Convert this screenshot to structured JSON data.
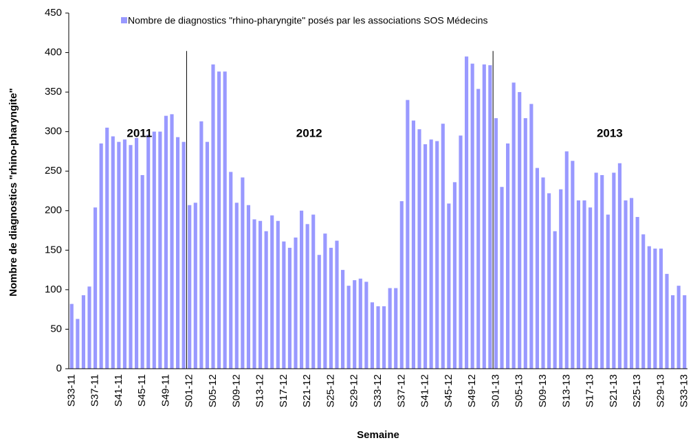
{
  "chart_data": {
    "type": "bar",
    "legend_label": "Nombre de diagnostics \"rhino-pharyngite\" posés par les associations SOS Médecins",
    "y_label": "Nombre de diagnostics \"rhino-pharyngite\"",
    "x_label": "Semaine",
    "annotations": [
      "2011",
      "2012",
      "2013"
    ],
    "color": "#9999ff",
    "ylim": [
      0,
      450
    ],
    "yticks": [
      0,
      50,
      100,
      150,
      200,
      250,
      300,
      350,
      400,
      450
    ],
    "categories": [
      "S33-11",
      null,
      null,
      null,
      "S37-11",
      null,
      null,
      null,
      "S41-11",
      null,
      null,
      null,
      "S45-11",
      null,
      null,
      null,
      "S49-11",
      null,
      null,
      null,
      "S01-12",
      null,
      null,
      null,
      "S05-12",
      null,
      null,
      null,
      "S09-12",
      null,
      null,
      null,
      "S13-12",
      null,
      null,
      null,
      "S17-12",
      null,
      null,
      null,
      "S21-12",
      null,
      null,
      null,
      "S25-12",
      null,
      null,
      null,
      "S29-12",
      null,
      null,
      null,
      "S33-12",
      null,
      null,
      null,
      "S37-12",
      null,
      null,
      null,
      "S41-12",
      null,
      null,
      null,
      "S45-12",
      null,
      null,
      null,
      "S49-12",
      null,
      null,
      null,
      "S01-13",
      null,
      null,
      null,
      "S05-13",
      null,
      null,
      null,
      "S09-13",
      null,
      null,
      null,
      "S13-13",
      null,
      null,
      null,
      "S17-13",
      null,
      null,
      null,
      "S21-13",
      null,
      null,
      null,
      "S25-13",
      null,
      null,
      null,
      "S29-13",
      null,
      null,
      null,
      "S33-13"
    ],
    "values": [
      82,
      63,
      93,
      104,
      204,
      285,
      305,
      294,
      287,
      290,
      283,
      292,
      245,
      296,
      300,
      300,
      320,
      322,
      293,
      287,
      207,
      210,
      313,
      287,
      385,
      376,
      376,
      249,
      210,
      242,
      207,
      189,
      187,
      174,
      194,
      187,
      161,
      153,
      166,
      200,
      183,
      195,
      144,
      171,
      153,
      162,
      125,
      105,
      112,
      114,
      110,
      84,
      79,
      79,
      102,
      102,
      212,
      340,
      314,
      303,
      284,
      290,
      288,
      310,
      209,
      236,
      295,
      395,
      386,
      354,
      385,
      384,
      317,
      230,
      285,
      362,
      350,
      317,
      335,
      254,
      242,
      222,
      174,
      227,
      275,
      263,
      213,
      213,
      204,
      248,
      245,
      195,
      248,
      260,
      213,
      216,
      192,
      170,
      155,
      152,
      152,
      120,
      93,
      105,
      93
    ]
  }
}
